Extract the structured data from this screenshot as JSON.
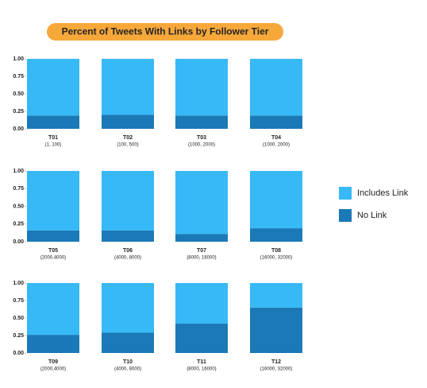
{
  "chart_data": {
    "type": "bar",
    "stacked": true,
    "title": "Percent of Tweets With Links by Follower Tier",
    "categories": [
      "T01",
      "T02",
      "T03",
      "T04",
      "T05",
      "T06",
      "T07",
      "T08",
      "T09",
      "T10",
      "T11",
      "T12"
    ],
    "category_sublabels": [
      "(1, 100)",
      "(100, 500)",
      "(1000, 2000)",
      "(1000, 2000)",
      "(2000,4000)",
      "(4000, 8000)",
      "(8000, 16000)",
      "(16000, 32000)",
      "(2000,4000)",
      "(4000, 8000)",
      "(8000, 16000)",
      "(16000, 32000)"
    ],
    "series": [
      {
        "name": "Includes Link",
        "color": "#36b9f6",
        "values": [
          0.81,
          0.8,
          0.81,
          0.81,
          0.84,
          0.84,
          0.89,
          0.81,
          0.74,
          0.71,
          0.58,
          0.35
        ]
      },
      {
        "name": "No Link",
        "color": "#1a79b6",
        "values": [
          0.19,
          0.2,
          0.19,
          0.19,
          0.16,
          0.16,
          0.11,
          0.19,
          0.26,
          0.29,
          0.42,
          0.65
        ]
      }
    ],
    "ylim": [
      0,
      1
    ],
    "yticks": [
      {
        "value": 0,
        "label": "0.00"
      },
      0.25,
      {
        "value": 0.5,
        "label": "0.50"
      },
      0.75,
      {
        "value": 1,
        "label": "1.00"
      }
    ],
    "legend": "right",
    "title_color": "#f7a83b"
  }
}
